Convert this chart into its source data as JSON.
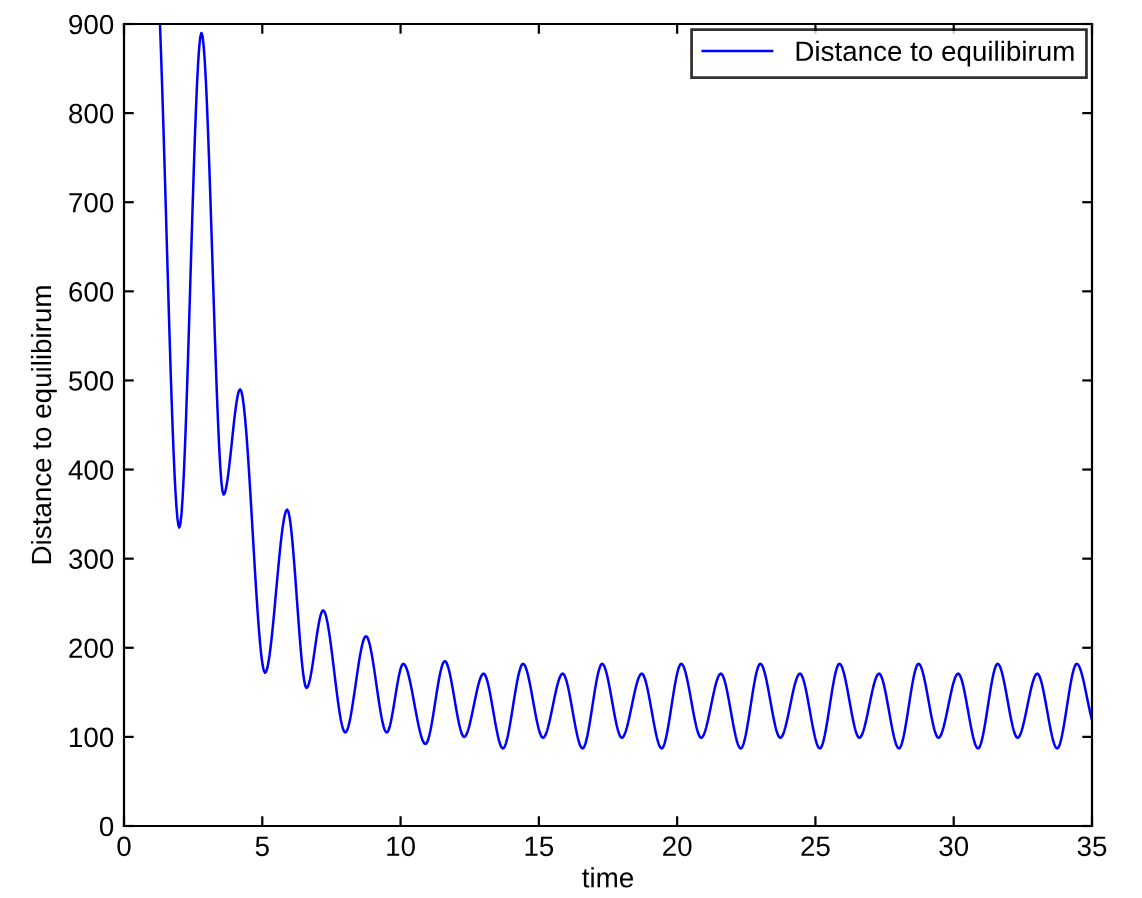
{
  "chart_data": {
    "type": "line",
    "xlabel": "time",
    "ylabel": "Distance to equilibirum",
    "xlim": [
      0,
      35
    ],
    "ylim": [
      0,
      900
    ],
    "xticks": [
      0,
      5,
      10,
      15,
      20,
      25,
      30,
      35
    ],
    "yticks": [
      0,
      100,
      200,
      300,
      400,
      500,
      600,
      700,
      800,
      900
    ],
    "grid": false,
    "legend": "top right",
    "marker": "none",
    "line_style": "solid",
    "series": [
      {
        "name": "Distance to equilibirum",
        "color": "#0000ff",
        "x": [
          1.3,
          2.0,
          2.8,
          3.6,
          4.2,
          5.1,
          5.9,
          6.6,
          7.2,
          8.0,
          8.75,
          9.5,
          10.1,
          10.9,
          11.6,
          12.3,
          13.0,
          13.7,
          14.43,
          15.15,
          15.86,
          16.58,
          17.29,
          18.0,
          18.72,
          19.44,
          20.15,
          20.87,
          21.58,
          22.3,
          23.01,
          23.73,
          24.44,
          25.16,
          25.87,
          26.59,
          27.3,
          28.02,
          28.73,
          29.45,
          30.16,
          30.88,
          31.59,
          32.31,
          33.02,
          33.74,
          34.45,
          35
        ],
        "values": [
          900,
          335,
          890,
          372,
          490,
          172,
          355,
          155,
          242,
          105,
          213,
          105,
          182,
          92,
          185,
          100,
          171,
          87,
          182,
          99,
          171,
          87,
          182,
          99,
          171,
          87,
          182,
          99,
          171,
          87,
          182,
          99,
          171,
          87,
          182,
          99,
          171,
          87,
          182,
          99,
          171,
          87,
          182,
          99,
          171,
          87,
          182,
          119
        ]
      }
    ]
  }
}
